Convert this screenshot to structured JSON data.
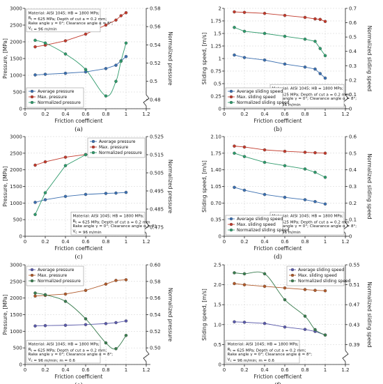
{
  "colors": {
    "blue": "#3b6fb0",
    "red": "#c23a2c",
    "green": "#2e9a6b",
    "brown": "#b05a2a",
    "purple": "#5a5aaa",
    "darkgreen": "#3a7d4f"
  },
  "x_ticks": [
    "0",
    "0.2",
    "0.4",
    "0.6",
    "0.8",
    "1",
    "1.2"
  ],
  "chart_data": [
    {
      "id": "a",
      "type": "line",
      "caption": "(a)",
      "xlabel": "Friction coefficient",
      "ylabel": "Pressure, [MPa]",
      "ylabel_right": "Normalized pressure",
      "ylim": [
        0,
        3000
      ],
      "yticks": [
        "0",
        "500",
        "1000",
        "1500",
        "2000",
        "2500",
        "3000"
      ],
      "ylim_right": [
        0.47,
        0.58
      ],
      "yticks_right": [
        "0.48",
        "0.5",
        "0.52",
        "0.54",
        "0.56",
        "0.58"
      ],
      "x": [
        0.1,
        0.2,
        0.4,
        0.6,
        0.8,
        0.9,
        0.95,
        1
      ],
      "series": [
        {
          "name": "Average pressure",
          "color": "blue",
          "axis": "left",
          "values": [
            1010,
            1030,
            1060,
            1100,
            1200,
            1300,
            1430,
            1560
          ]
        },
        {
          "name": "Max. pressure",
          "color": "red",
          "axis": "left",
          "values": [
            1850,
            1900,
            2030,
            2230,
            2500,
            2650,
            2780,
            2870
          ]
        },
        {
          "name": "Normalized pressure",
          "color": "green",
          "axis": "right",
          "values": [
            0.545,
            0.542,
            0.53,
            0.513,
            0.484,
            0.5,
            0.522,
            0.542
          ],
          "smooth": true
        }
      ],
      "legend": "bottom-left",
      "annotation": [
        "Material: AISI 1045; HB = 1800 MPa;",
        "R_t = 625 MPa; Depth of cut a = 0.2 mm;",
        "Rake angle γ = 0°; Clearance angle α = 8°;",
        "V_c = 96 m/min"
      ],
      "annotation_pos": "top-left"
    },
    {
      "id": "b",
      "type": "line",
      "caption": "(b)",
      "xlabel": "Friction coefficient",
      "ylabel": "Sliding speed, [m/s]",
      "ylabel_right": "Normalized sliding speed",
      "ylim": [
        0,
        2.0
      ],
      "yticks": [
        "0",
        "0.25",
        "0.5",
        "0.75",
        "1",
        "1.25",
        "1.5",
        "1.75",
        "2"
      ],
      "ylim_right": [
        0,
        0.7
      ],
      "yticks_right": [
        "0",
        "0.1",
        "0.2",
        "0.3",
        "0.4",
        "0.5",
        "0.6",
        "0.7"
      ],
      "x": [
        0.1,
        0.2,
        0.4,
        0.6,
        0.8,
        0.9,
        0.95,
        1
      ],
      "series": [
        {
          "name": "Average sliding speed",
          "color": "blue",
          "axis": "left",
          "values": [
            1.07,
            1.02,
            0.97,
            0.89,
            0.83,
            0.79,
            0.7,
            0.61
          ]
        },
        {
          "name": "Max. sliding speed",
          "color": "red",
          "axis": "left",
          "values": [
            1.93,
            1.92,
            1.9,
            1.86,
            1.82,
            1.79,
            1.78,
            1.74
          ]
        },
        {
          "name": "Normalized sliding speed",
          "color": "green",
          "axis": "right",
          "values": [
            0.567,
            0.54,
            0.525,
            0.505,
            0.485,
            0.47,
            0.42,
            0.37
          ]
        }
      ],
      "legend": "bottom-left",
      "annotation": [
        "Material: AISI 1045; HB = 1800 MPa;",
        "R_t = 625 MPa; Depth of cut a = 0.2 mm;",
        "Rake angle γ = 0°; Clearance angle α = 8°;",
        "V_c = 96 m/min"
      ],
      "annotation_pos": "bottom-right"
    },
    {
      "id": "c",
      "type": "line",
      "caption": "(c)",
      "xlabel": "Friction coefficient",
      "ylabel": "Pressure, [MPa]",
      "ylabel_right": "Normalized pressure",
      "ylim": [
        0,
        3000
      ],
      "yticks": [
        "0",
        "500",
        "1000",
        "1500",
        "2000",
        "2500",
        "3000"
      ],
      "ylim_right": [
        0.47,
        0.525
      ],
      "yticks_right": [
        "0.475",
        "0.485",
        "0.495",
        "0.505",
        "0.515",
        "0.525"
      ],
      "x": [
        0.1,
        0.2,
        0.4,
        0.6,
        0.8,
        0.9,
        1
      ],
      "series": [
        {
          "name": "Average pressure",
          "color": "blue",
          "axis": "left",
          "values": [
            1020,
            1100,
            1200,
            1260,
            1290,
            1300,
            1320
          ]
        },
        {
          "name": "Max. pressure",
          "color": "red",
          "axis": "left",
          "values": [
            2140,
            2240,
            2380,
            2460,
            2500,
            2520,
            2530
          ]
        },
        {
          "name": "Normalized pressure",
          "color": "green",
          "axis": "right",
          "values": [
            0.482,
            0.494,
            0.509,
            0.515,
            0.517,
            0.518,
            0.521
          ]
        }
      ],
      "legend": "top-right",
      "annotation": [
        "Material: AISI 1045; HB = 1800 MPa;",
        "R_t = 625 MPa; Depth of cut a = 0.2 mm",
        "Rake angle γ = 0°; Clearance angle α = 8°;",
        "V_c = 96 m/min"
      ],
      "annotation_pos": "bottom-right"
    },
    {
      "id": "d",
      "type": "line",
      "caption": "(d)",
      "xlabel": "Friction coefficient",
      "ylabel": "Sliding speed, [m/s]",
      "ylabel_right": "Normalized sliding speed",
      "ylim": [
        0,
        2.1
      ],
      "yticks": [
        "0",
        "0.35",
        "0.70",
        "1.05",
        "1.40",
        "1.75",
        "2.10"
      ],
      "ylim_right": [
        0,
        0.6
      ],
      "yticks_right": [
        "0",
        "0.1",
        "0.2",
        "0.3",
        "0.4",
        "0.5",
        "0.6"
      ],
      "x": [
        0.1,
        0.2,
        0.4,
        0.6,
        0.8,
        0.9,
        1
      ],
      "series": [
        {
          "name": "Average sliding speed",
          "color": "blue",
          "axis": "left",
          "values": [
            1.03,
            0.97,
            0.88,
            0.82,
            0.77,
            0.73,
            0.68
          ]
        },
        {
          "name": "Max. sliding speed",
          "color": "red",
          "axis": "left",
          "values": [
            1.9,
            1.88,
            1.82,
            1.79,
            1.77,
            1.76,
            1.75
          ]
        },
        {
          "name": "Normalized sliding speed",
          "color": "green",
          "axis": "right",
          "values": [
            0.5,
            0.48,
            0.445,
            0.425,
            0.405,
            0.385,
            0.355
          ]
        }
      ],
      "legend": "bottom-left",
      "annotation": [
        "Material: AISI 1045; HB = 1800 MPa;",
        "R_t = 625 MPa; Depth of cut a = 0.2 mm",
        "Rake angle γ = 0°; Clearance angle α = 8°;",
        "V_c = 96 m/min"
      ],
      "annotation_pos": "bottom-right"
    },
    {
      "id": "e",
      "type": "line",
      "caption": "(e)",
      "xlabel": "Friction coefficient",
      "ylabel": "Pressure, [MPa]",
      "ylabel_right": "Normalized pressure",
      "ylim": [
        0,
        3000
      ],
      "yticks": [
        "0",
        "500",
        "1000",
        "1500",
        "2000",
        "2500",
        "3000"
      ],
      "ylim_right": [
        0.48,
        0.6
      ],
      "yticks_right": [
        "0.50",
        "0.52",
        "0.54",
        "0.56",
        "0.58",
        "0.60"
      ],
      "x": [
        0.1,
        0.2,
        0.4,
        0.6,
        0.8,
        0.9,
        1
      ],
      "series": [
        {
          "name": "Average pressure",
          "color": "purple",
          "axis": "left",
          "values": [
            1160,
            1170,
            1180,
            1200,
            1230,
            1260,
            1310
          ]
        },
        {
          "name": "Max. pressure",
          "color": "brown",
          "axis": "left",
          "values": [
            2060,
            2080,
            2120,
            2230,
            2420,
            2530,
            2550
          ]
        },
        {
          "name": "Normalized pressure",
          "color": "darkgreen",
          "axis": "right",
          "values": [
            0.566,
            0.564,
            0.556,
            0.535,
            0.506,
            0.499,
            0.515
          ],
          "smooth": true
        }
      ],
      "legend": "top-left",
      "annotation": [
        "Material: AISI 1045; HB = 1800 MPa;",
        "R_t = 625 MPa; Depth of cut a = 0.2 mm;",
        "Rake angle γ = 0°; Clearance angle α = 8°;",
        "V_c = 96 m/min;  m = 0.6"
      ],
      "annotation_pos": "bottom-left"
    },
    {
      "id": "f",
      "type": "line",
      "caption": "(f)",
      "xlabel": "Friction coefficient",
      "ylabel": "Sliding speed, [m/s]",
      "ylabel_right": "Normalized sliding speed",
      "ylim": [
        0,
        2.5
      ],
      "yticks": [
        "0",
        "0.5",
        "1.0",
        "1.5",
        "2.0",
        "2.5"
      ],
      "ylim_right": [
        0.35,
        0.55
      ],
      "yticks_right": [
        "0.39",
        "0.43",
        "0.47",
        "0.51",
        "0.55"
      ],
      "x": [
        0.1,
        0.2,
        0.4,
        0.6,
        0.8,
        0.9,
        1
      ],
      "series": [
        {
          "name": "Average sliding speed",
          "color": "purple",
          "axis": "left",
          "values": [
            1.07,
            1.06,
            1.03,
            0.94,
            0.88,
            0.83,
            0.74
          ]
        },
        {
          "name": "Max. sliding speed",
          "color": "brown",
          "axis": "left",
          "values": [
            2.03,
            2.0,
            1.96,
            1.92,
            1.88,
            1.86,
            1.85
          ]
        },
        {
          "name": "Normalized sliding speed",
          "color": "darkgreen",
          "axis": "right",
          "values": [
            0.534,
            0.532,
            0.532,
            0.48,
            0.447,
            0.42,
            0.409
          ],
          "smooth": true
        }
      ],
      "legend": "top-right",
      "annotation": [
        "Material: AISI 1045; HB = 1800 MPa;",
        "R_t = 625 MPa; Depth of cut a = 0.2 mm;",
        "Rake angle γ = 0°; Clearance angle α = 8°;",
        "V_c = 96 m/min;  m = 0.6"
      ],
      "annotation_pos": "bottom-left"
    }
  ]
}
